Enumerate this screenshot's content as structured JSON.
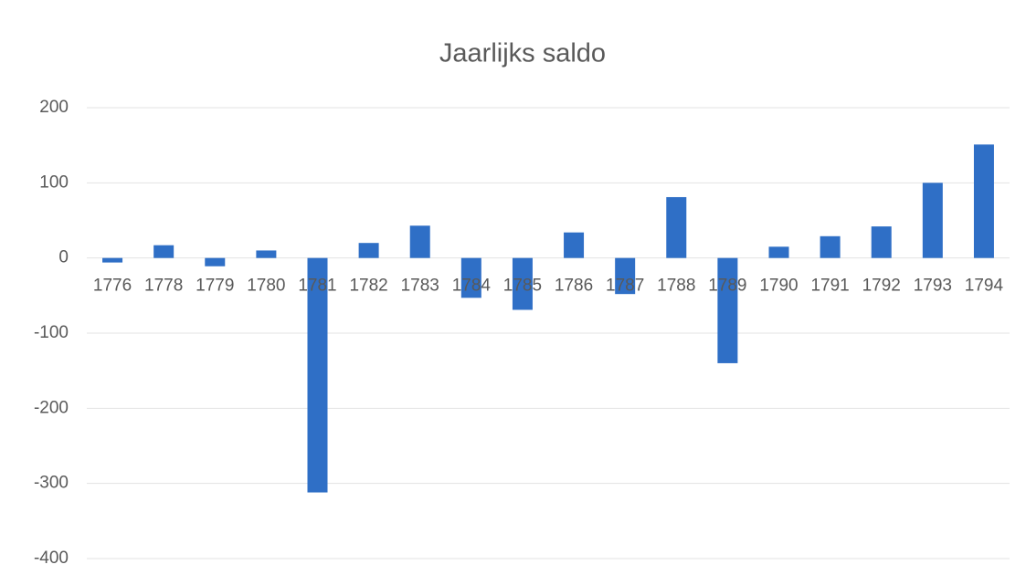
{
  "chart_data": {
    "type": "bar",
    "title": "Jaarlijks saldo",
    "categories": [
      "1776",
      "1778",
      "1779",
      "1780",
      "1781",
      "1782",
      "1783",
      "1784",
      "1785",
      "1786",
      "1787",
      "1788",
      "1789",
      "1790",
      "1791",
      "1792",
      "1793",
      "1794"
    ],
    "values": [
      -6,
      17,
      -11,
      10,
      -312,
      20,
      43,
      -53,
      -69,
      34,
      -48,
      81,
      -140,
      15,
      29,
      42,
      100,
      151
    ],
    "color": "#2f6fc6",
    "ylim": [
      -400,
      200
    ],
    "yticks": [
      200,
      100,
      0,
      -100,
      -200,
      -300,
      -400
    ],
    "grid": true
  }
}
